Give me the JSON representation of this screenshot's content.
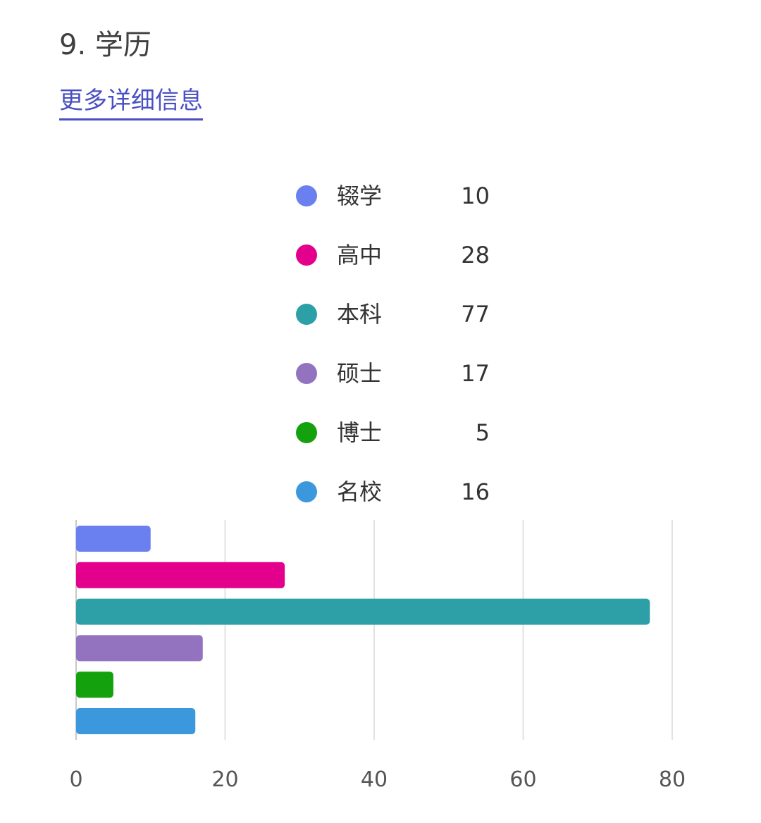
{
  "header": {
    "title": "9. 学历",
    "more_link": "更多详细信息"
  },
  "chart_data": {
    "type": "bar",
    "orientation": "horizontal",
    "categories": [
      "辍学",
      "高中",
      "本科",
      "硕士",
      "博士",
      "名校"
    ],
    "values": [
      10,
      28,
      77,
      17,
      5,
      16
    ],
    "colors": [
      "#6a7ff0",
      "#e3008c",
      "#2ca0a6",
      "#9373c0",
      "#13a10e",
      "#3b98dc"
    ],
    "xlim": [
      0,
      80
    ],
    "xticks": [
      0,
      20,
      40,
      60,
      80
    ],
    "grid": true,
    "legend_position": "top"
  }
}
